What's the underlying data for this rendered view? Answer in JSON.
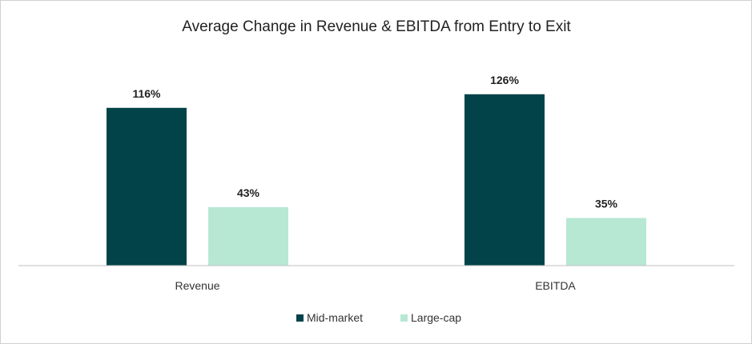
{
  "chart_data": {
    "type": "bar",
    "title": "Average Change in Revenue & EBITDA from Entry to Exit",
    "categories": [
      "Revenue",
      "EBITDA"
    ],
    "series": [
      {
        "name": "Mid-market",
        "values": [
          116,
          126
        ],
        "labels": [
          "116%",
          "126%"
        ],
        "color": "#02434a"
      },
      {
        "name": "Large-cap",
        "values": [
          43,
          35
        ],
        "labels": [
          "43%",
          "35%"
        ],
        "color": "#b7e8d4"
      }
    ],
    "ylim": [
      0,
      150
    ],
    "grid": false,
    "legend_position": "bottom",
    "axis_color": "#bfbfbf"
  }
}
